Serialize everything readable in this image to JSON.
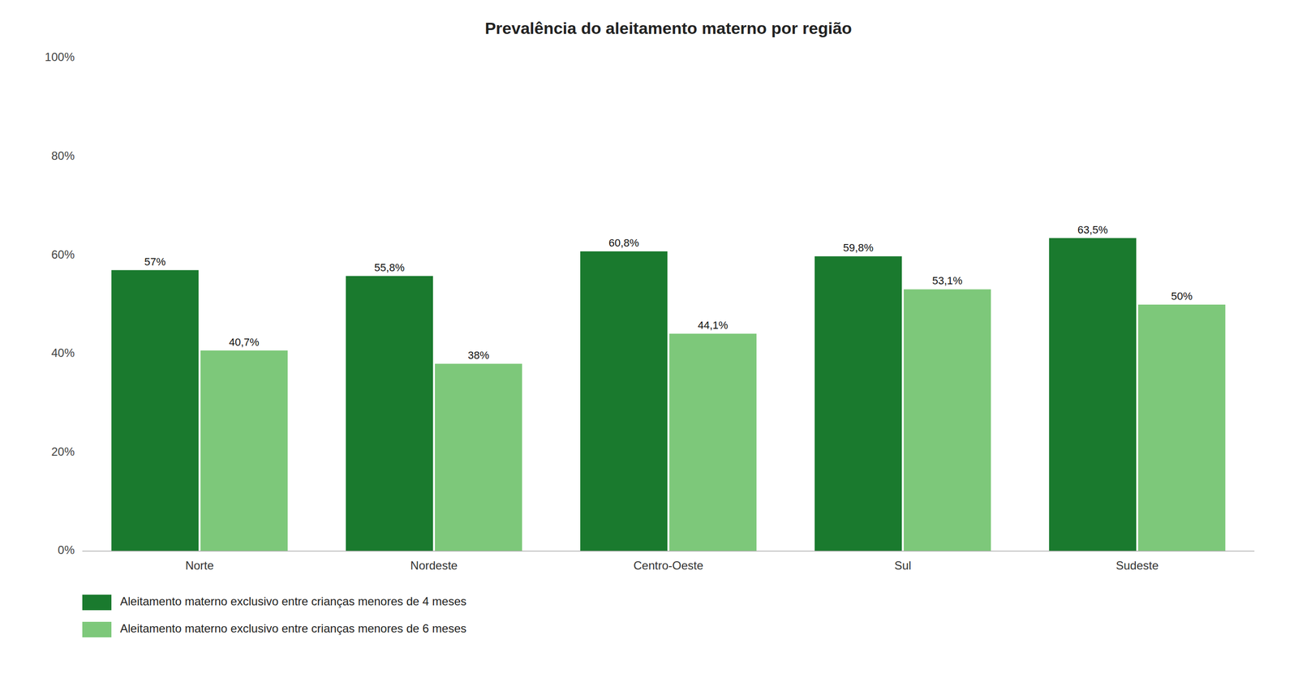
{
  "chart_data": {
    "type": "bar",
    "title": "Prevalência do aleitamento materno por região",
    "categories": [
      "Norte",
      "Nordeste",
      "Centro-Oeste",
      "Sul",
      "Sudeste"
    ],
    "series": [
      {
        "name": "Aleitamento materno exclusivo entre crianças menores de 4 meses",
        "color": "#1a7a2e",
        "values": [
          57.0,
          55.8,
          60.8,
          59.8,
          63.5
        ],
        "value_labels": [
          "57%",
          "55,8%",
          "60,8%",
          "59,8%",
          "63,5%"
        ]
      },
      {
        "name": "Aleitamento materno exclusivo entre crianças menores de 6 meses",
        "color": "#7dc87a",
        "values": [
          40.7,
          38.0,
          44.1,
          53.1,
          50.0
        ],
        "value_labels": [
          "40,7%",
          "38%",
          "44,1%",
          "53,1%",
          "50%"
        ]
      }
    ],
    "ylim": [
      0,
      100
    ],
    "yticks": [
      {
        "value": 0,
        "label": "0%"
      },
      {
        "value": 20,
        "label": "20%"
      },
      {
        "value": 40,
        "label": "40%"
      },
      {
        "value": 60,
        "label": "60%"
      },
      {
        "value": 80,
        "label": "80%"
      },
      {
        "value": 100,
        "label": "100%"
      }
    ],
    "grid": false,
    "data_labels": true,
    "legend": "bottom"
  }
}
